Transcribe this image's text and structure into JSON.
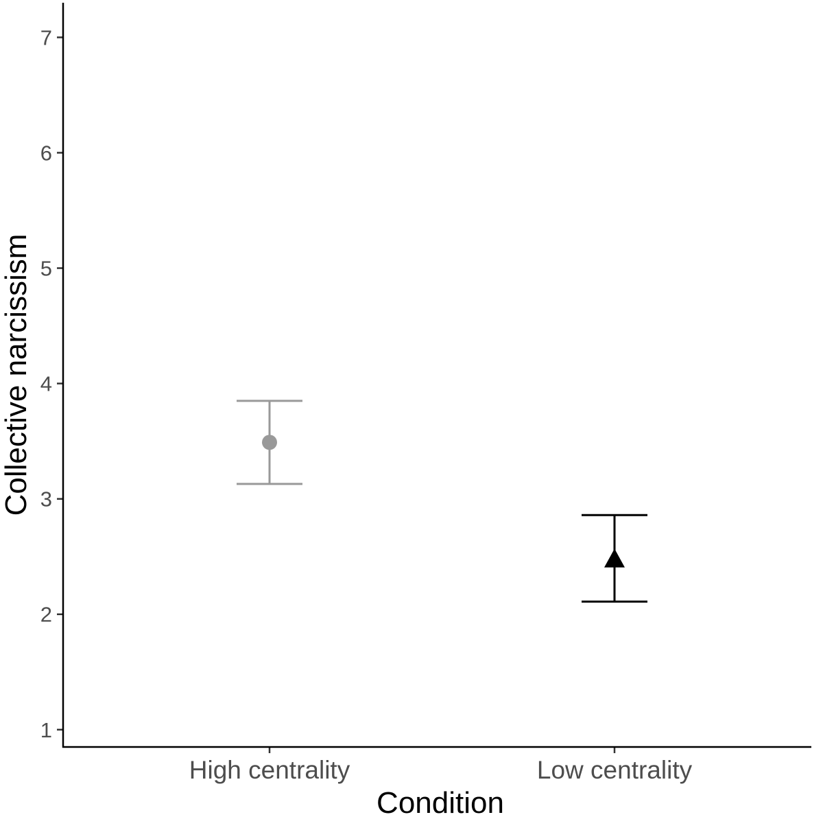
{
  "chart_data": {
    "type": "scatter",
    "subtype": "point-with-error-bars",
    "title": "",
    "xlabel": "Condition",
    "ylabel": "Collective narcissism",
    "ylim": [
      0.85,
      7.3
    ],
    "yticks": [
      "1",
      "2",
      "3",
      "4",
      "5",
      "6",
      "7"
    ],
    "categories": [
      "High centrality",
      "Low centrality"
    ],
    "series": [
      {
        "name": "High centrality",
        "mean": 3.49,
        "lower": 3.13,
        "upper": 3.85,
        "shape": "circle",
        "color": "#999999"
      },
      {
        "name": "Low centrality",
        "mean": 2.48,
        "lower": 2.11,
        "upper": 2.86,
        "shape": "triangle",
        "color": "#000000"
      }
    ],
    "grid": false,
    "legend": "none"
  }
}
